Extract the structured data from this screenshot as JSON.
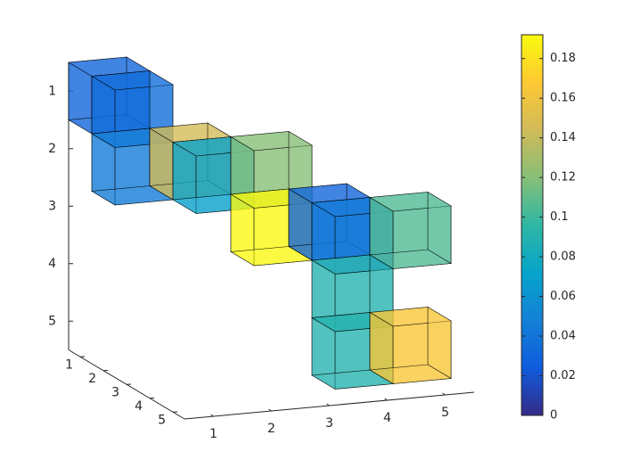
{
  "chart_data": {
    "type": "voxel",
    "cubes": {
      "x": [
        1,
        1,
        1,
        2,
        2,
        3,
        3,
        4,
        4,
        5,
        4,
        4,
        5
      ],
      "y": [
        1,
        1,
        2,
        2,
        2,
        2,
        3,
        3,
        3,
        3,
        4,
        5,
        5
      ],
      "z": [
        1,
        2,
        2,
        2,
        3,
        3,
        3,
        3,
        4,
        4,
        4,
        4,
        4
      ],
      "values": [
        0.03,
        0.035,
        0.045,
        0.145,
        0.07,
        0.12,
        0.19,
        0.03,
        0.045,
        0.105,
        0.09,
        0.09,
        0.165
      ]
    },
    "xlim": [
      0.5,
      5.5
    ],
    "xticks": [
      1,
      2,
      3,
      4,
      5
    ],
    "ylim": [
      0.5,
      5.5
    ],
    "yticks": [
      1,
      2,
      3,
      4,
      5
    ],
    "zlim": [
      0.5,
      5.5
    ],
    "zticks": [
      1,
      2,
      3,
      4,
      5
    ],
    "colormap": [
      "#352a87",
      "#0f5cdd",
      "#1481d6",
      "#06a4ca",
      "#2eb7a4",
      "#87bf77",
      "#d1bb59",
      "#fec832",
      "#f9fb0e"
    ],
    "face_alpha": 0.55,
    "clim": [
      0,
      0.192
    ],
    "cticks": [
      0,
      0.02,
      0.04,
      0.06,
      0.08,
      0.1,
      0.12,
      0.14,
      0.16,
      0.18
    ]
  }
}
